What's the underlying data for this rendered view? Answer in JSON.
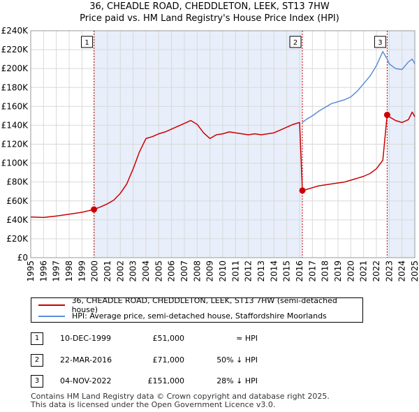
{
  "chart_data": {
    "type": "line",
    "title": "36, CHEADLE ROAD, CHEDDLETON, LEEK, ST13 7HW",
    "subtitle": "Price paid vs. HM Land Registry's House Price Index (HPI)",
    "xlim": [
      1995,
      2025
    ],
    "ylim": [
      0,
      240000
    ],
    "x_ticks": [
      1995,
      1996,
      1997,
      1998,
      1999,
      2000,
      2001,
      2002,
      2003,
      2004,
      2005,
      2006,
      2007,
      2008,
      2009,
      2010,
      2011,
      2012,
      2013,
      2014,
      2015,
      2016,
      2017,
      2018,
      2019,
      2020,
      2021,
      2022,
      2023,
      2024,
      2025
    ],
    "x_tick_labels": [
      "1995",
      "1996",
      "1997",
      "1998",
      "1999",
      "2000",
      "2001",
      "2002",
      "2003",
      "2004",
      "2005",
      "2006",
      "2007",
      "2008",
      "2009",
      "2010",
      "2011",
      "2012",
      "2013",
      "2014",
      "2015",
      "2016",
      "2017",
      "2018",
      "2019",
      "2020",
      "2021",
      "2022",
      "2023",
      "2024",
      "2025"
    ],
    "y_ticks": [
      0,
      20000,
      40000,
      60000,
      80000,
      100000,
      120000,
      140000,
      160000,
      180000,
      200000,
      220000,
      240000
    ],
    "y_tick_labels": [
      "£0",
      "£20K",
      "£40K",
      "£60K",
      "£80K",
      "£100K",
      "£120K",
      "£140K",
      "£160K",
      "£180K",
      "£200K",
      "£220K",
      "£240K"
    ],
    "grid": true,
    "series": [
      {
        "name": "36, CHEADLE ROAD, CHEDDLETON, LEEK, ST13 7HW (semi-detached house)",
        "color": "#cc0000",
        "x": [
          1995.0,
          1996.0,
          1997.0,
          1998.0,
          1999.0,
          1999.94,
          2000.5,
          2001.0,
          2001.5,
          2002.0,
          2002.5,
          2003.0,
          2003.5,
          2004.0,
          2004.5,
          2005.0,
          2005.5,
          2006.0,
          2006.5,
          2007.0,
          2007.5,
          2008.0,
          2008.5,
          2009.0,
          2009.5,
          2010.0,
          2010.5,
          2011.0,
          2011.5,
          2012.0,
          2012.5,
          2013.0,
          2013.5,
          2014.0,
          2014.5,
          2015.0,
          2015.5,
          2016.0,
          2016.22,
          2016.5,
          2017.0,
          2017.5,
          2018.0,
          2018.5,
          2019.0,
          2019.5,
          2020.0,
          2020.5,
          2021.0,
          2021.5,
          2022.0,
          2022.5,
          2022.84,
          2023.0,
          2023.5,
          2024.0,
          2024.5,
          2024.8,
          2025.0
        ],
        "y": [
          43000,
          42500,
          44000,
          46000,
          48000,
          51000,
          54000,
          57000,
          61000,
          68000,
          78000,
          94000,
          112000,
          126000,
          128000,
          131000,
          133000,
          136000,
          139000,
          142000,
          145000,
          141000,
          132000,
          126000,
          130000,
          131000,
          133000,
          132000,
          131000,
          130000,
          131000,
          130000,
          131000,
          132000,
          135000,
          138000,
          141000,
          143000,
          71000,
          72000,
          74000,
          76000,
          77000,
          78000,
          79000,
          80000,
          82000,
          84000,
          86000,
          89000,
          94000,
          103000,
          151000,
          149000,
          145000,
          143000,
          146000,
          154000,
          149000
        ]
      },
      {
        "name": "HPI: Average price, semi-detached house, Staffordshire Moorlands",
        "color": "#5b8ed6",
        "x": [
          2016.22,
          2016.5,
          2017.0,
          2017.5,
          2018.0,
          2018.5,
          2019.0,
          2019.5,
          2020.0,
          2020.5,
          2021.0,
          2021.5,
          2022.0,
          2022.5,
          2022.84,
          2023.0,
          2023.5,
          2024.0,
          2024.5,
          2024.8,
          2025.0
        ],
        "y": [
          143000,
          146000,
          150000,
          155000,
          159000,
          163000,
          165000,
          167000,
          170000,
          176000,
          184000,
          192000,
          203000,
          218000,
          210000,
          205000,
          200000,
          199000,
          207000,
          210000,
          205000
        ]
      }
    ],
    "annotations": [
      {
        "label": "1",
        "x": 1999.94,
        "y": 51000
      },
      {
        "label": "2",
        "x": 2016.22,
        "y": 71000
      },
      {
        "label": "3",
        "x": 2022.84,
        "y": 151000
      }
    ],
    "shaded_regions": [
      [
        1999.94,
        2016.22
      ],
      [
        2022.84,
        2025.0
      ]
    ]
  },
  "legend": {
    "property_label": "36, CHEADLE ROAD, CHEDDLETON, LEEK, ST13 7HW (semi-detached house)",
    "hpi_label": "HPI: Average price, semi-detached house, Staffordshire Moorlands",
    "property_color": "#cc0000",
    "hpi_color": "#5b8ed6"
  },
  "transactions": [
    {
      "num": "1",
      "date": "10-DEC-1999",
      "price": "£51,000",
      "hpi": "≈ HPI"
    },
    {
      "num": "2",
      "date": "22-MAR-2016",
      "price": "£71,000",
      "hpi": "50% ↓ HPI"
    },
    {
      "num": "3",
      "date": "04-NOV-2022",
      "price": "£151,000",
      "hpi": "28% ↓ HPI"
    }
  ],
  "footer": {
    "line1": "Contains HM Land Registry data © Crown copyright and database right 2025.",
    "line2": "This data is licensed under the Open Government Licence v3.0."
  }
}
